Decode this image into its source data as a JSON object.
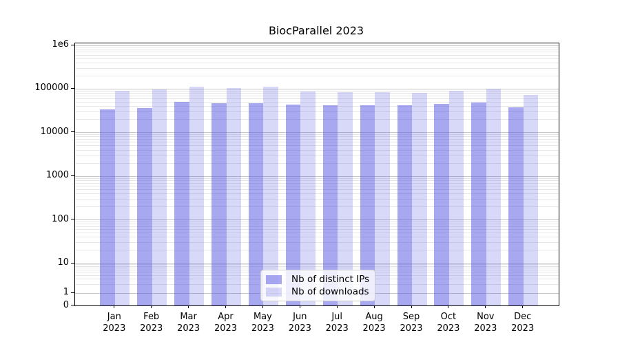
{
  "chart_data": {
    "type": "bar",
    "title": "BiocParallel 2023",
    "y_scale": "log-with-zero (linear segment below 1)",
    "ylim": [
      0,
      1100000
    ],
    "grid": true,
    "legend_position": "lower center",
    "x_year": "2023",
    "x_months": [
      "Jan",
      "Feb",
      "Mar",
      "Apr",
      "May",
      "Jun",
      "Jul",
      "Aug",
      "Sep",
      "Oct",
      "Nov",
      "Dec"
    ],
    "y_ticks": [
      {
        "label": "1e6",
        "value": 1000000
      },
      {
        "label": "100000",
        "value": 100000
      },
      {
        "label": "10000",
        "value": 10000
      },
      {
        "label": "1000",
        "value": 1000
      },
      {
        "label": "100",
        "value": 100
      },
      {
        "label": "10",
        "value": 10
      },
      {
        "label": "1",
        "value": 1
      },
      {
        "label": "0",
        "value": 0
      }
    ],
    "series": [
      {
        "name": "Nb of distinct IPs",
        "color": "rgba(90,90,226,0.53)",
        "values": [
          34000,
          36000,
          50000,
          46000,
          47000,
          43500,
          41500,
          41000,
          42000,
          44500,
          48000,
          38000
        ]
      },
      {
        "name": "Nb of downloads",
        "color": "rgba(90,90,226,0.24)",
        "values": [
          90000,
          95000,
          113000,
          105000,
          110000,
          87000,
          84000,
          83000,
          80000,
          90000,
          100000,
          73000
        ]
      }
    ]
  }
}
